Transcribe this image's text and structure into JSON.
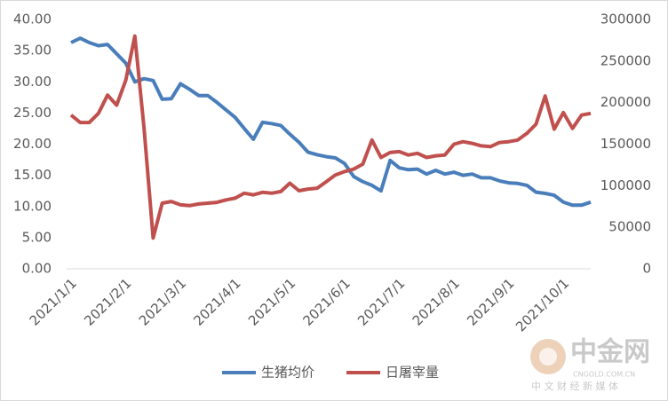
{
  "chart_data": {
    "type": "line",
    "categories": [
      "2021/1/1",
      null,
      null,
      null,
      null,
      null,
      "2021/2/1",
      null,
      null,
      null,
      null,
      null,
      "2021/3/1",
      null,
      null,
      null,
      null,
      null,
      "2021/4/1",
      null,
      null,
      null,
      null,
      null,
      "2021/5/1",
      null,
      null,
      null,
      null,
      null,
      "2021/6/1",
      null,
      null,
      null,
      null,
      null,
      "2021/7/1",
      null,
      null,
      null,
      null,
      null,
      "2021/8/1",
      null,
      null,
      null,
      null,
      null,
      "2021/9/1",
      null,
      null,
      null,
      null,
      null,
      "2021/10/1",
      null,
      null,
      null
    ],
    "series": [
      {
        "name": "生猪均价",
        "color": "#4a7ebb",
        "axis": "y",
        "values": [
          36.3,
          37.0,
          36.3,
          35.8,
          36.0,
          34.5,
          33.0,
          30.0,
          30.5,
          30.2,
          27.2,
          27.3,
          29.7,
          28.8,
          27.8,
          27.8,
          26.7,
          25.5,
          24.3,
          22.5,
          20.8,
          23.5,
          23.3,
          23.0,
          21.6,
          20.3,
          18.7,
          18.3,
          18.0,
          17.8,
          16.9,
          14.8,
          14.0,
          13.4,
          12.5,
          17.4,
          16.2,
          15.9,
          16.0,
          15.2,
          15.8,
          15.2,
          15.5,
          15.0,
          15.2,
          14.6,
          14.6,
          14.1,
          13.8,
          13.7,
          13.4,
          12.3,
          12.1,
          11.8,
          10.7,
          10.2,
          10.2,
          10.7
        ]
      },
      {
        "name": "日屠宰量",
        "color": "#c0504d",
        "axis": "y2",
        "values": [
          185000,
          176000,
          176000,
          187000,
          209000,
          197000,
          227000,
          280000,
          170000,
          37000,
          79000,
          81000,
          77000,
          76000,
          78000,
          79000,
          80000,
          83000,
          85000,
          91000,
          89000,
          92000,
          91000,
          93000,
          103000,
          94000,
          96000,
          97000,
          105000,
          113000,
          117000,
          120000,
          126000,
          155000,
          134000,
          140000,
          141000,
          137000,
          139000,
          134000,
          136000,
          137000,
          150000,
          153000,
          151000,
          148000,
          147000,
          152000,
          153000,
          155000,
          163000,
          174000,
          208000,
          168000,
          188000,
          169000,
          185000,
          187000
        ]
      }
    ],
    "ylim": [
      0,
      40
    ],
    "yticks": [
      {
        "value": 0,
        "label": "0.00"
      },
      {
        "value": 5,
        "label": "5.00"
      },
      {
        "value": 10,
        "label": "10.00"
      },
      {
        "value": 15,
        "label": "15.00"
      },
      {
        "value": 20,
        "label": "20.00"
      },
      {
        "value": 25,
        "label": "25.00"
      },
      {
        "value": 30,
        "label": "30.00"
      },
      {
        "value": 35,
        "label": "35.00"
      },
      {
        "value": 40,
        "label": "40.00"
      }
    ],
    "y2lim": [
      0,
      300000
    ],
    "y2ticks": [
      0,
      50000,
      100000,
      150000,
      200000,
      250000,
      300000
    ],
    "grid": false,
    "legend": "bottom"
  },
  "watermark": {
    "brand": "中金网",
    "site": "CNGOLD.COM.CN",
    "slogan": "中 文 财 经 新 媒 体"
  }
}
